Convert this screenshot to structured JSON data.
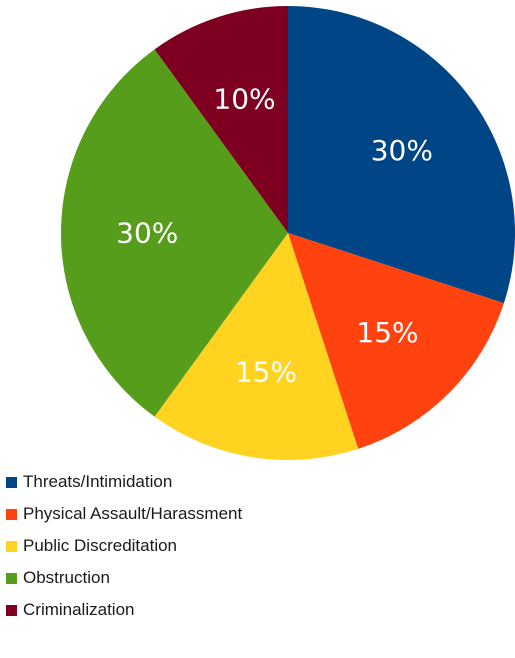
{
  "chart_data": {
    "type": "pie",
    "title": "",
    "legend_position": "bottom-left",
    "slices": [
      {
        "label": "Threats/Intimidation",
        "value": 30,
        "display": "30%",
        "color": "#004586"
      },
      {
        "label": "Physical Assault/Harassment",
        "value": 15,
        "display": "15%",
        "color": "#ff420e"
      },
      {
        "label": "Public Discreditation",
        "value": 15,
        "display": "15%",
        "color": "#ffd320"
      },
      {
        "label": "Obstruction",
        "value": 30,
        "display": "30%",
        "color": "#579d1c"
      },
      {
        "label": "Criminalization",
        "value": 10,
        "display": "10%",
        "color": "#7e0021"
      }
    ]
  }
}
